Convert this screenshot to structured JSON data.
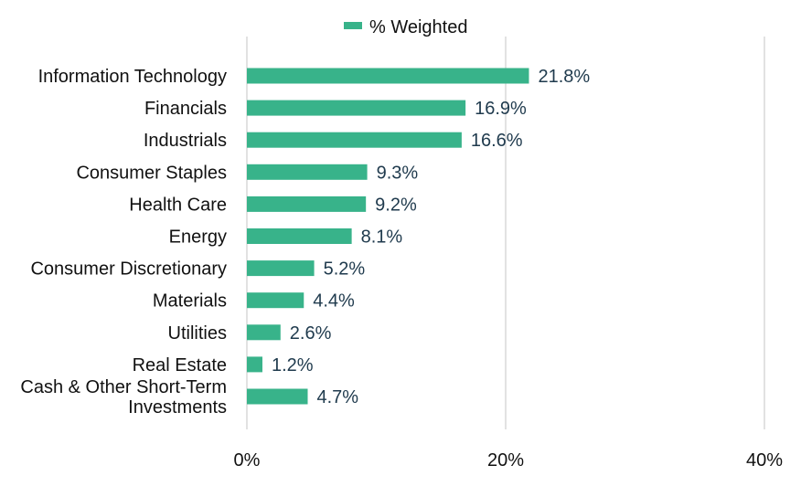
{
  "chart_data": {
    "type": "bar",
    "orientation": "horizontal",
    "categories": [
      "Information Technology",
      "Financials",
      "Industrials",
      "Consumer Staples",
      "Health Care",
      "Energy",
      "Consumer Discretionary",
      "Materials",
      "Utilities",
      "Real Estate",
      "Cash & Other Short-Term Investments"
    ],
    "series": [
      {
        "name": "% Weighted",
        "values": [
          21.8,
          16.9,
          16.6,
          9.3,
          9.2,
          8.1,
          5.2,
          4.4,
          2.6,
          1.2,
          4.7
        ],
        "labels": [
          "21.8%",
          "16.9%",
          "16.6%",
          "9.3%",
          "9.2%",
          "8.1%",
          "5.2%",
          "4.4%",
          "2.6%",
          "1.2%",
          "4.7%"
        ]
      }
    ],
    "xlim": [
      0,
      40
    ],
    "x_ticks": [
      0,
      20,
      40
    ],
    "x_tick_labels": [
      "0%",
      "20%",
      "40%"
    ],
    "grid": "vertical",
    "legend": "top-center",
    "colors": {
      "bar": "#38b38a",
      "grid": "#d9d9d9",
      "value_label": "#1f3a4d",
      "text": "#111111"
    }
  }
}
